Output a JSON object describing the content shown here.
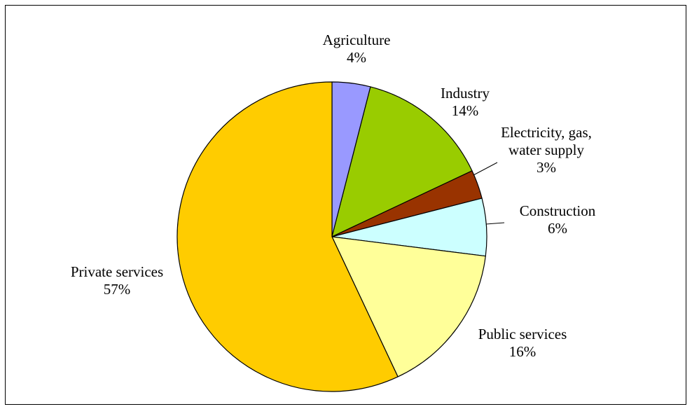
{
  "chart_data": {
    "type": "pie",
    "title": "",
    "slices": [
      {
        "label_lines": [
          "Agriculture"
        ],
        "value_label": "4%",
        "value": 4,
        "color": "#9999ff"
      },
      {
        "label_lines": [
          "Industry"
        ],
        "value_label": "14%",
        "value": 14,
        "color": "#99cc00"
      },
      {
        "label_lines": [
          "Electricity, gas,",
          "water supply"
        ],
        "value_label": "3%",
        "value": 3,
        "color": "#993300"
      },
      {
        "label_lines": [
          "Construction"
        ],
        "value_label": "6%",
        "value": 6,
        "color": "#ccffff"
      },
      {
        "label_lines": [
          "Public services"
        ],
        "value_label": "16%",
        "value": 16,
        "color": "#ffff99"
      },
      {
        "label_lines": [
          "Private services"
        ],
        "value_label": "57%",
        "value": 57,
        "color": "#ffcc00"
      }
    ],
    "start": "12 o'clock, clockwise",
    "legend": "none"
  }
}
